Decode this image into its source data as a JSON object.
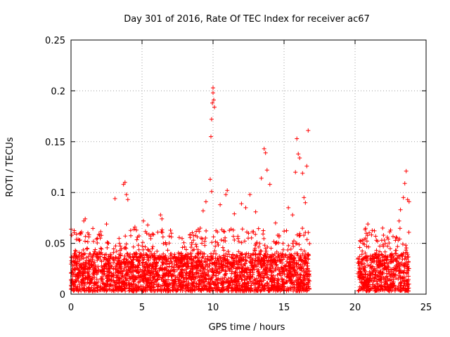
{
  "chart_data": {
    "type": "scatter",
    "title": "Day 301 of 2016, Rate Of TEC Index for receiver ac67",
    "xlabel": "GPS time / hours",
    "ylabel": "ROTI / TECUs",
    "xlim": [
      0,
      25
    ],
    "ylim": [
      0,
      0.25
    ],
    "xticks": [
      0,
      5,
      10,
      15,
      20,
      25
    ],
    "xtick_labels": [
      "0",
      "5",
      "10",
      "15",
      "20",
      "25"
    ],
    "yticks": [
      0,
      0.05,
      0.1,
      0.15,
      0.2,
      0.25
    ],
    "ytick_labels": [
      "0",
      "0.05",
      "0.1",
      "0.15",
      "0.2",
      "0.25"
    ],
    "grid": true,
    "marker": "plus",
    "color": "#ff0000",
    "data_gap_hours": [
      16.8,
      20.2
    ],
    "series": [
      {
        "name": "ROTI",
        "points": [
          [
            0.05,
            0.058
          ],
          [
            0.3,
            0.043
          ],
          [
            0.9,
            0.072
          ],
          [
            1.0,
            0.074
          ],
          [
            2.0,
            0.058
          ],
          [
            2.5,
            0.069
          ],
          [
            3.1,
            0.094
          ],
          [
            3.7,
            0.108
          ],
          [
            3.8,
            0.11
          ],
          [
            3.9,
            0.098
          ],
          [
            4.0,
            0.093
          ],
          [
            4.5,
            0.066
          ],
          [
            5.1,
            0.072
          ],
          [
            5.4,
            0.068
          ],
          [
            6.3,
            0.078
          ],
          [
            6.4,
            0.074
          ],
          [
            8.5,
            0.049
          ],
          [
            9.3,
            0.082
          ],
          [
            9.5,
            0.091
          ],
          [
            9.8,
            0.113
          ],
          [
            9.85,
            0.155
          ],
          [
            9.9,
            0.172
          ],
          [
            9.95,
            0.188
          ],
          [
            10.0,
            0.203
          ],
          [
            10.0,
            0.198
          ],
          [
            10.05,
            0.191
          ],
          [
            10.1,
            0.184
          ],
          [
            9.9,
            0.101
          ],
          [
            10.5,
            0.088
          ],
          [
            10.9,
            0.098
          ],
          [
            11.0,
            0.102
          ],
          [
            11.5,
            0.079
          ],
          [
            12.0,
            0.089
          ],
          [
            12.3,
            0.085
          ],
          [
            12.6,
            0.098
          ],
          [
            13.0,
            0.081
          ],
          [
            13.4,
            0.114
          ],
          [
            13.6,
            0.143
          ],
          [
            13.7,
            0.139
          ],
          [
            13.8,
            0.122
          ],
          [
            14.0,
            0.108
          ],
          [
            14.4,
            0.07
          ],
          [
            15.3,
            0.085
          ],
          [
            15.6,
            0.078
          ],
          [
            15.8,
            0.12
          ],
          [
            15.9,
            0.153
          ],
          [
            16.0,
            0.138
          ],
          [
            16.1,
            0.134
          ],
          [
            16.3,
            0.119
          ],
          [
            16.4,
            0.095
          ],
          [
            16.5,
            0.09
          ],
          [
            16.6,
            0.126
          ],
          [
            16.7,
            0.161
          ],
          [
            20.9,
            0.069
          ],
          [
            21.5,
            0.053
          ],
          [
            22.0,
            0.058
          ],
          [
            22.5,
            0.063
          ],
          [
            22.9,
            0.056
          ],
          [
            23.1,
            0.072
          ],
          [
            23.2,
            0.083
          ],
          [
            23.4,
            0.095
          ],
          [
            23.5,
            0.109
          ],
          [
            23.6,
            0.121
          ],
          [
            23.7,
            0.093
          ],
          [
            23.8,
            0.091
          ]
        ],
        "band": {
          "segments": [
            [
              0.0,
              16.8
            ],
            [
              20.2,
              23.8
            ]
          ],
          "typical_min": 0.003,
          "typical_max": 0.04,
          "frequent_spikes_max": 0.065
        }
      }
    ]
  }
}
